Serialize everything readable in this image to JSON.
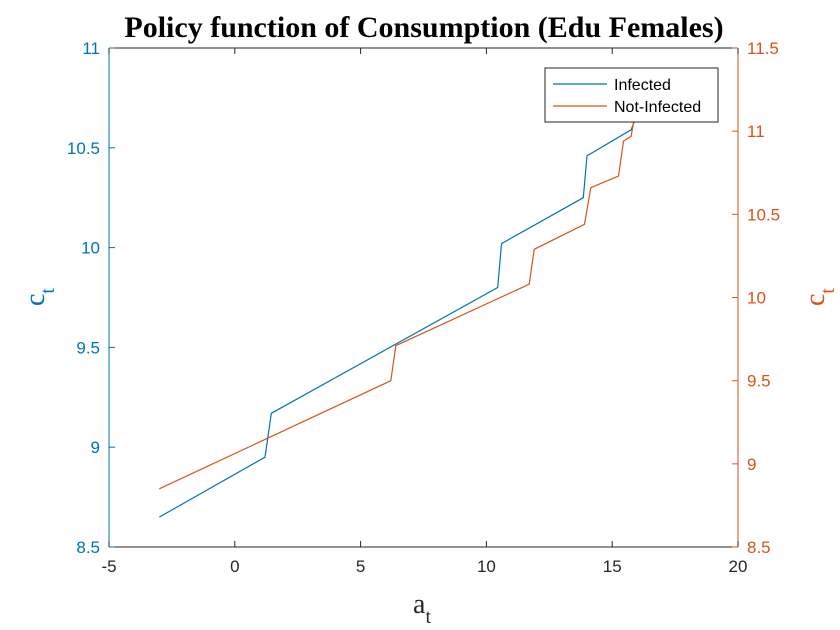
{
  "chart_data": {
    "type": "line",
    "title": "Policy function of Consumption (Edu Females)",
    "xlabel": {
      "main": "a",
      "sub": "t"
    },
    "ylabel_left": {
      "main": "c",
      "sub": "t"
    },
    "ylabel_right": {
      "main": "c",
      "sub": "t"
    },
    "xlim": [
      -5,
      20
    ],
    "ylim_left": [
      8.5,
      11
    ],
    "ylim_right": [
      8.5,
      11.5
    ],
    "xticks": [
      "-5",
      "0",
      "5",
      "10",
      "15",
      "20"
    ],
    "yticks_left": [
      "8.5",
      "9",
      "9.5",
      "10",
      "10.5",
      "11"
    ],
    "yticks_right": [
      "8.5",
      "9",
      "9.5",
      "10",
      "10.5",
      "11",
      "11.5"
    ],
    "grid": false,
    "legend_position": "top-right",
    "colors": {
      "left_axis": "#0072BD",
      "right_axis": "#D95319",
      "box": "#262626"
    },
    "series": [
      {
        "name": "Infected",
        "axis": "left",
        "color": "#0072BD",
        "x": [
          -3,
          1.2,
          1.45,
          10.45,
          10.6,
          13.85,
          14.0,
          15.75,
          16.0
        ],
        "y": [
          8.65,
          8.95,
          9.17,
          9.8,
          10.02,
          10.25,
          10.46,
          10.59,
          10.67
        ]
      },
      {
        "name": "Not-Infected",
        "axis": "right",
        "color": "#D95319",
        "x": [
          -3,
          6.2,
          6.4,
          11.7,
          11.9,
          13.9,
          14.15,
          15.25,
          15.45,
          15.75,
          15.92
        ],
        "y": [
          8.85,
          9.5,
          9.71,
          10.08,
          10.29,
          10.44,
          10.66,
          10.73,
          10.94,
          10.97,
          11.11
        ]
      }
    ]
  }
}
